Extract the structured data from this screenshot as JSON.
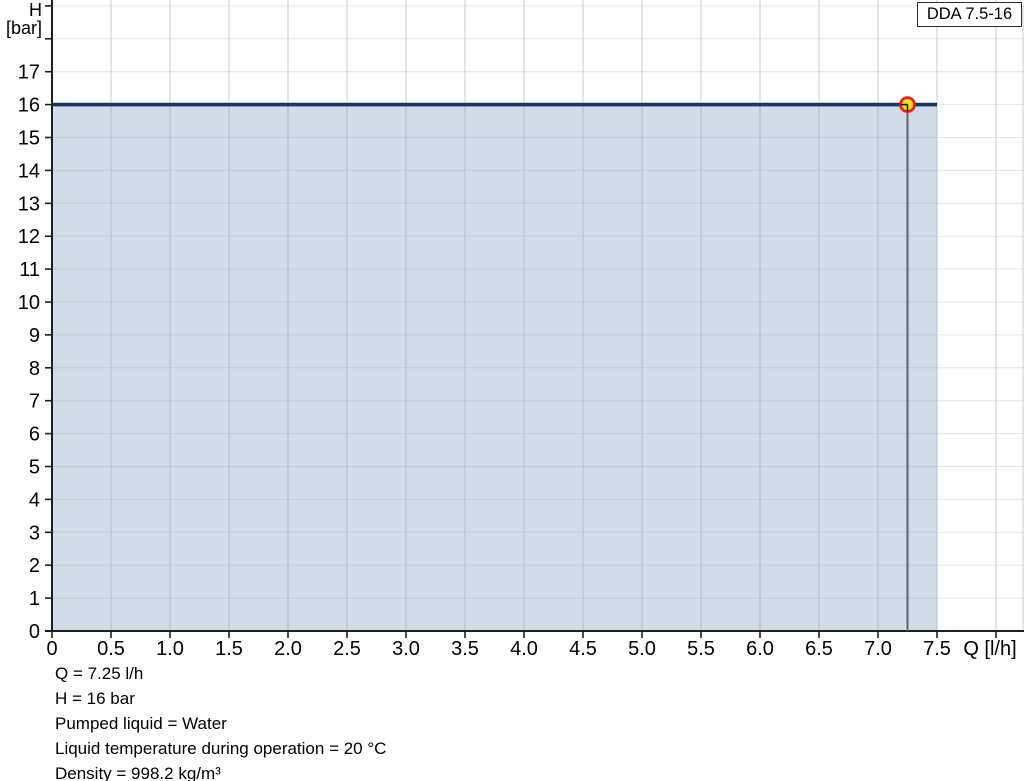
{
  "legend": {
    "label": "DDA 7.5-16"
  },
  "info_lines": [
    "Q = 7.25 l/h",
    "H = 16 bar",
    "Pumped liquid = Water",
    "Liquid temperature during operation = 20 °C",
    "Density = 998.2 kg/m³"
  ],
  "colors": {
    "curve": "#17365d",
    "area_fill": "rgba(125,155,190,0.35)",
    "grid_vertical": "#c7ccd1",
    "grid_horizontal": "#e3e6e9",
    "axis": "#1f1f1f",
    "tick_text": "#000000",
    "op_line": "#5a6570",
    "marker_fill": "#ffe10a",
    "marker_stroke": "#e8231f"
  },
  "chart_data": {
    "type": "area",
    "title": "",
    "x_axis": {
      "label": "Q [l/h]",
      "min": 0,
      "max": 8.23,
      "tick_step": 0.5,
      "tick_labels": [
        "0",
        "0.5",
        "1.0",
        "1.5",
        "2.0",
        "2.5",
        "3.0",
        "3.5",
        "4.0",
        "4.5",
        "5.0",
        "5.5",
        "6.0",
        "6.5",
        "7.0",
        "7.5"
      ],
      "grid": true
    },
    "y_axis": {
      "label": "H",
      "unit": "[bar]",
      "min": 0,
      "max": 19,
      "tick_step": 1,
      "tick_labels": [
        "0",
        "1",
        "2",
        "3",
        "4",
        "5",
        "6",
        "7",
        "8",
        "9",
        "10",
        "11",
        "12",
        "13",
        "14",
        "15",
        "16",
        "17"
      ],
      "grid": true
    },
    "series": [
      {
        "name": "DDA 7.5-16",
        "points": [
          [
            0,
            16
          ],
          [
            7.5,
            16
          ]
        ],
        "area": true
      }
    ],
    "operating_point": {
      "q": 7.25,
      "h": 16
    }
  }
}
